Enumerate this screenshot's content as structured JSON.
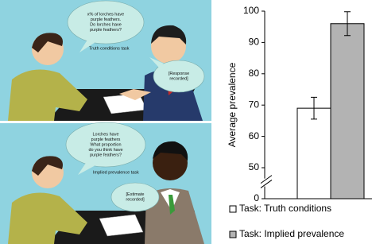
{
  "illustration": {
    "top": {
      "bubble_left": [
        "x% of lorches have",
        "purple feathers.",
        "Do lorches have",
        "purple feathers?"
      ],
      "task": "Truth conditions task",
      "bubble_right": [
        "[Response",
        "recorded]"
      ]
    },
    "bottom": {
      "bubble_left": [
        "Lorches have",
        "purple feathers",
        "What proportion",
        "do you think have",
        "purple feathers?"
      ],
      "task": "Implied prevalence task",
      "bubble_right": [
        "[Estimate",
        "recorded]"
      ]
    }
  },
  "chart_data": {
    "type": "bar",
    "ylabel": "Average prevalence",
    "ylim": [
      0,
      100
    ],
    "yticks": [
      0,
      50,
      60,
      70,
      80,
      90,
      100
    ],
    "axis_break": true,
    "series": [
      {
        "name": "Task: Truth conditions",
        "color": "#ffffff",
        "values": [
          69
        ],
        "errors": [
          3.5
        ]
      },
      {
        "name": "Task: Implied prevalence",
        "color": "#b3b3b3",
        "values": [
          96
        ],
        "errors": [
          3.8
        ]
      }
    ]
  }
}
